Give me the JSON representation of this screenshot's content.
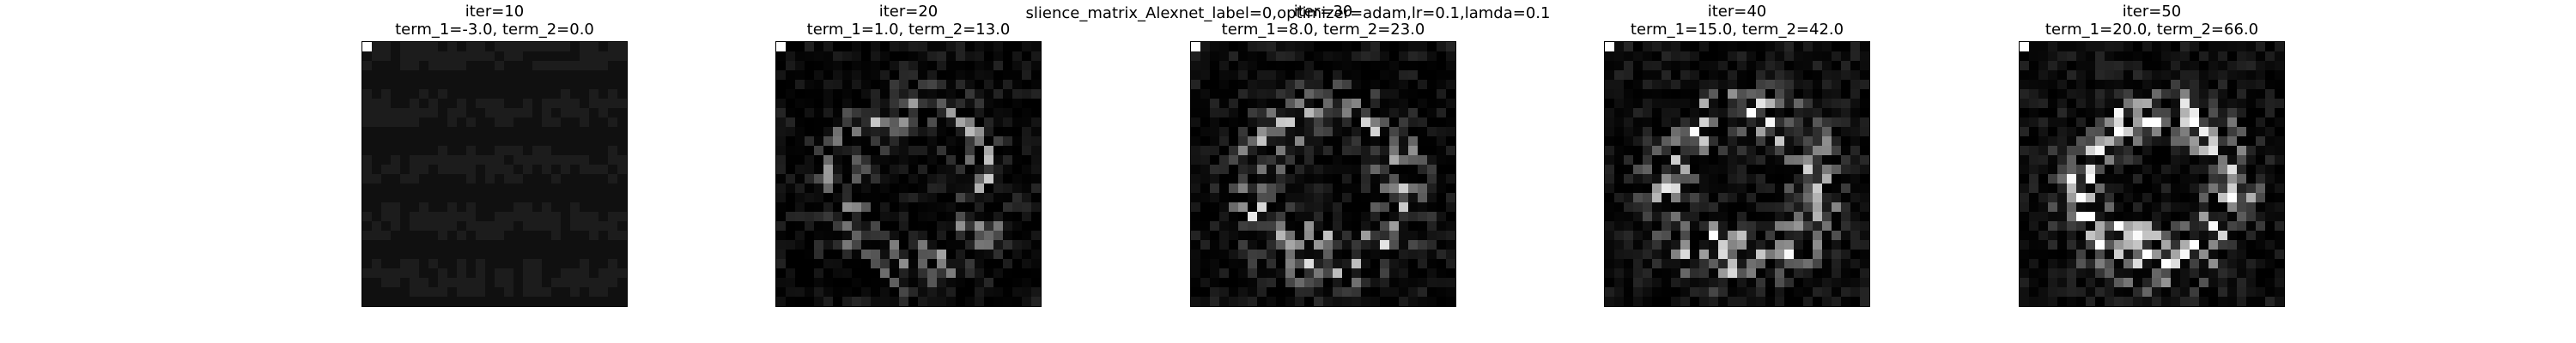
{
  "figure": {
    "suptitle": "slience_matrix_Alexnet_label=0,optimizer=adam,lr=0.1,lamda=0.1",
    "panels": [
      {
        "iter_label": "iter=10",
        "terms_label": "term_1=-3.0, term_2=0.0",
        "term_1": -3.0,
        "term_2": 0.0
      },
      {
        "iter_label": "iter=20",
        "terms_label": "term_1=1.0, term_2=13.0",
        "term_1": 1.0,
        "term_2": 13.0
      },
      {
        "iter_label": "iter=30",
        "terms_label": "term_1=8.0, term_2=23.0",
        "term_1": 8.0,
        "term_2": 23.0
      },
      {
        "iter_label": "iter=40",
        "terms_label": "term_1=15.0, term_2=42.0",
        "term_1": 15.0,
        "term_2": 42.0
      },
      {
        "iter_label": "iter=50",
        "terms_label": "term_1=20.0, term_2=66.0",
        "term_1": 20.0,
        "term_2": 66.0
      }
    ],
    "colormap": "gray",
    "image_grid": [
      28,
      28
    ],
    "colors": {
      "background": "#ffffff",
      "frame": "#000000"
    }
  }
}
